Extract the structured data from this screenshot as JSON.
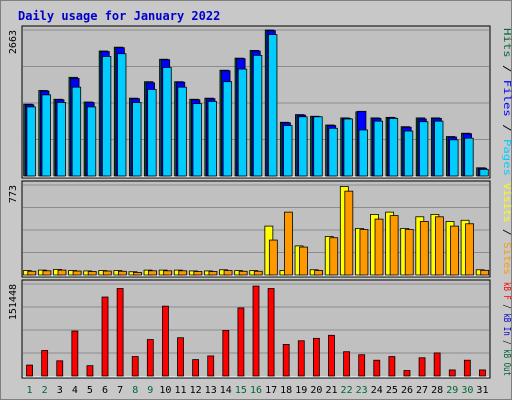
{
  "chart_data": {
    "type": "bar",
    "title": "Daily usage for January 2022",
    "x": [
      "1",
      "2",
      "3",
      "4",
      "5",
      "6",
      "7",
      "8",
      "9",
      "10",
      "11",
      "12",
      "13",
      "14",
      "15",
      "16",
      "17",
      "18",
      "19",
      "20",
      "21",
      "22",
      "23",
      "24",
      "25",
      "26",
      "27",
      "28",
      "29",
      "30",
      "31"
    ],
    "weekend_days": [
      "1",
      "2",
      "8",
      "9",
      "15",
      "16",
      "22",
      "23",
      "29",
      "30"
    ],
    "colors": {
      "hits": "#006633",
      "files": "#0000ff",
      "pages": "#00ccff",
      "visits": "#ffff00",
      "sites": "#ff9900",
      "kb_f": "#ff0000",
      "kb_in": "#0000cc",
      "kb_out": "#006633",
      "title_color": "#0000cc",
      "weekend_label": "#006633",
      "weekday_label": "#000000",
      "panel_bg": "#c0c0c0",
      "grid": "#8c8c8c"
    },
    "panels": [
      {
        "id": "hits-files-pages",
        "ymax_label": "2663",
        "ymax": 2663,
        "legend": [
          {
            "text": "Hits",
            "color": "#006633"
          },
          {
            "text": " / ",
            "color": "#000000"
          },
          {
            "text": "Files",
            "color": "#0000ff"
          },
          {
            "text": " / ",
            "color": "#000000"
          },
          {
            "text": "Pages",
            "color": "#00ccff"
          }
        ],
        "series": [
          {
            "key": "hits",
            "values": [
              1310,
              1560,
              1400,
              1800,
              1350,
              2280,
              2350,
              1420,
              1720,
              2130,
              1720,
              1400,
              1420,
              1930,
              2150,
              2290,
              2663,
              980,
              1120,
              1090,
              930,
              1060,
              1170,
              1060,
              1070,
              900,
              1060,
              1060,
              720,
              780,
              150
            ]
          },
          {
            "key": "files",
            "values": [
              1300,
              1550,
              1390,
              1780,
              1340,
              2270,
              2340,
              1410,
              1700,
              2120,
              1710,
              1390,
              1410,
              1920,
              2140,
              2280,
              2650,
              970,
              1110,
              1080,
              920,
              1050,
              1180,
              1050,
              1060,
              890,
              1040,
              1050,
              710,
              770,
              140
            ]
          },
          {
            "key": "pages",
            "values": [
              1260,
              1480,
              1340,
              1620,
              1260,
              2180,
              2230,
              1340,
              1580,
              1980,
              1620,
              1320,
              1360,
              1720,
              1950,
              2200,
              2580,
              920,
              1080,
              1080,
              870,
              1040,
              840,
              1000,
              1050,
              820,
              990,
              1000,
              660,
              690,
              120
            ]
          }
        ]
      },
      {
        "id": "visits-sites",
        "ymax_label": "773",
        "ymax": 773,
        "legend": [
          {
            "text": "Visits",
            "color": "#ffff00"
          },
          {
            "text": " / ",
            "color": "#000000"
          },
          {
            "text": "Sites",
            "color": "#ff9900"
          }
        ],
        "series": [
          {
            "key": "visits",
            "values": [
              38,
              42,
              48,
              38,
              35,
              38,
              38,
              28,
              42,
              42,
              42,
              35,
              35,
              45,
              38,
              38,
              420,
              38,
              250,
              45,
              330,
              760,
              400,
              520,
              540,
              400,
              500,
              520,
              460,
              470,
              45
            ]
          },
          {
            "key": "sites",
            "values": [
              32,
              36,
              42,
              34,
              30,
              34,
              32,
              22,
              36,
              36,
              36,
              30,
              30,
              38,
              32,
              32,
              300,
              540,
              240,
              38,
              320,
              720,
              390,
              480,
              510,
              390,
              460,
              500,
              420,
              440,
              40
            ]
          }
        ]
      },
      {
        "id": "kb",
        "ymax_label": "151448",
        "ymax": 151448,
        "legend": [
          {
            "text": "kB F",
            "color": "#ff0000"
          },
          {
            "text": " / ",
            "color": "#000000"
          },
          {
            "text": "kB In",
            "color": "#0000cc"
          },
          {
            "text": " / ",
            "color": "#000000"
          },
          {
            "text": "kB Out",
            "color": "#006633"
          }
        ],
        "series": [
          {
            "key": "kb_f",
            "values": [
              18000,
              42000,
              25000,
              74000,
              17000,
              130000,
              144000,
              32000,
              60000,
              115000,
              63000,
              27000,
              33000,
              75000,
              112000,
              148000,
              144000,
              52000,
              58000,
              62000,
              67000,
              40000,
              35000,
              26000,
              32000,
              9000,
              30000,
              38000,
              10000,
              26000,
              10000
            ]
          }
        ]
      }
    ]
  }
}
